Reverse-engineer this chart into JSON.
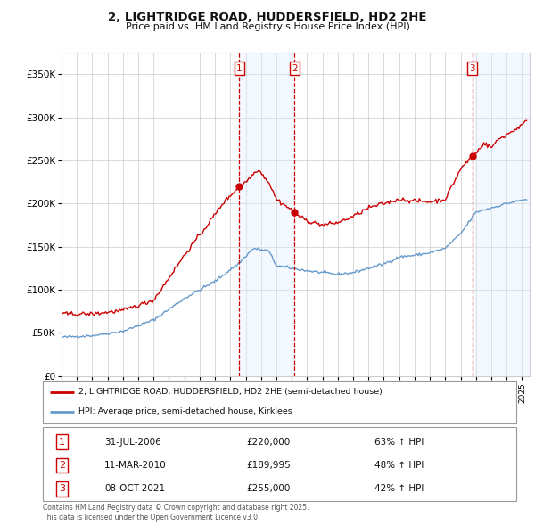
{
  "title_line1": "2, LIGHTRIDGE ROAD, HUDDERSFIELD, HD2 2HE",
  "title_line2": "Price paid vs. HM Land Registry's House Price Index (HPI)",
  "ylim": [
    0,
    375000
  ],
  "yticks": [
    0,
    50000,
    100000,
    150000,
    200000,
    250000,
    300000,
    350000
  ],
  "ytick_labels": [
    "£0",
    "£50K",
    "£100K",
    "£150K",
    "£200K",
    "£250K",
    "£300K",
    "£350K"
  ],
  "xlim_start": 1995.0,
  "xlim_end": 2025.5,
  "sale_events": [
    {
      "label": "1",
      "date_str": "31-JUL-2006",
      "price": 220000,
      "price_str": "£220,000",
      "pct": "63% ↑ HPI",
      "x_year": 2006.58
    },
    {
      "label": "2",
      "date_str": "11-MAR-2010",
      "price": 189995,
      "price_str": "£189,995",
      "pct": "48% ↑ HPI",
      "x_year": 2010.19
    },
    {
      "label": "3",
      "date_str": "08-OCT-2021",
      "price": 255000,
      "price_str": "£255,000",
      "pct": "42% ↑ HPI",
      "x_year": 2021.77
    }
  ],
  "legend_line1": "2, LIGHTRIDGE ROAD, HUDDERSFIELD, HD2 2HE (semi-detached house)",
  "legend_line2": "HPI: Average price, semi-detached house, Kirklees",
  "footnote": "Contains HM Land Registry data © Crown copyright and database right 2025.\nThis data is licensed under the Open Government Licence v3.0.",
  "red_color": "#cc0000",
  "blue_color": "#6699cc",
  "shading_color": "#ddeeff",
  "background_color": "#ffffff",
  "grid_color": "#cccccc",
  "shading_alpha": 0.35
}
